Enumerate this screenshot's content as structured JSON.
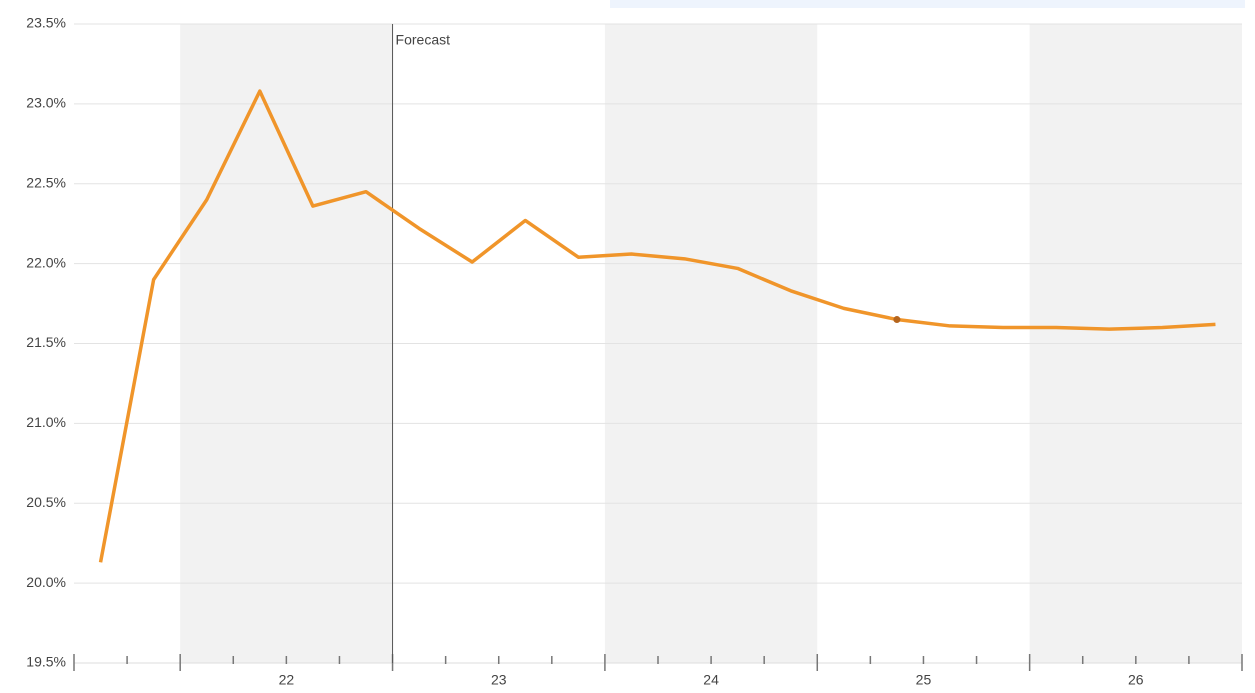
{
  "chart_data": {
    "type": "line",
    "x": [
      2021.625,
      2021.875,
      2022.125,
      2022.375,
      2022.625,
      2022.875,
      2023.125,
      2023.375,
      2023.625,
      2023.875,
      2024.125,
      2024.375,
      2024.625,
      2024.875,
      2025.125,
      2025.375,
      2025.625,
      2025.875,
      2026.125,
      2026.375,
      2026.625,
      2026.875
    ],
    "series": [
      {
        "color": "#f0952a",
        "values": [
          20.13,
          21.9,
          22.4,
          23.08,
          22.36,
          22.45,
          22.22,
          22.01,
          22.27,
          22.04,
          22.06,
          22.03,
          21.97,
          21.83,
          21.72,
          21.65,
          21.61,
          21.6,
          21.6,
          21.59,
          21.6,
          21.62
        ]
      }
    ],
    "highlight_index": 15,
    "xlim": [
      2021.5,
      2027
    ],
    "xticks": [
      {
        "value": 2022.5,
        "label": "22"
      },
      {
        "value": 2023.5,
        "label": "23"
      },
      {
        "value": 2024.5,
        "label": "24"
      },
      {
        "value": 2025.5,
        "label": "25"
      },
      {
        "value": 2026.5,
        "label": "26"
      }
    ],
    "ylim": [
      19.5,
      23.5
    ],
    "yticks": [
      {
        "value": 19.5,
        "label": "19.5%"
      },
      {
        "value": 20.0,
        "label": "20.0%"
      },
      {
        "value": 20.5,
        "label": "20.5%"
      },
      {
        "value": 21.0,
        "label": "21.0%"
      },
      {
        "value": 21.5,
        "label": "21.5%"
      },
      {
        "value": 22.0,
        "label": "22.0%"
      },
      {
        "value": 22.5,
        "label": "22.5%"
      },
      {
        "value": 23.0,
        "label": "23.0%"
      },
      {
        "value": 23.5,
        "label": "23.5%"
      }
    ],
    "bands": [
      [
        2022,
        2023
      ],
      [
        2024,
        2025
      ],
      [
        2026,
        2027
      ]
    ],
    "annotation": {
      "x": 2023,
      "text": "Forecast"
    },
    "grid": true
  }
}
